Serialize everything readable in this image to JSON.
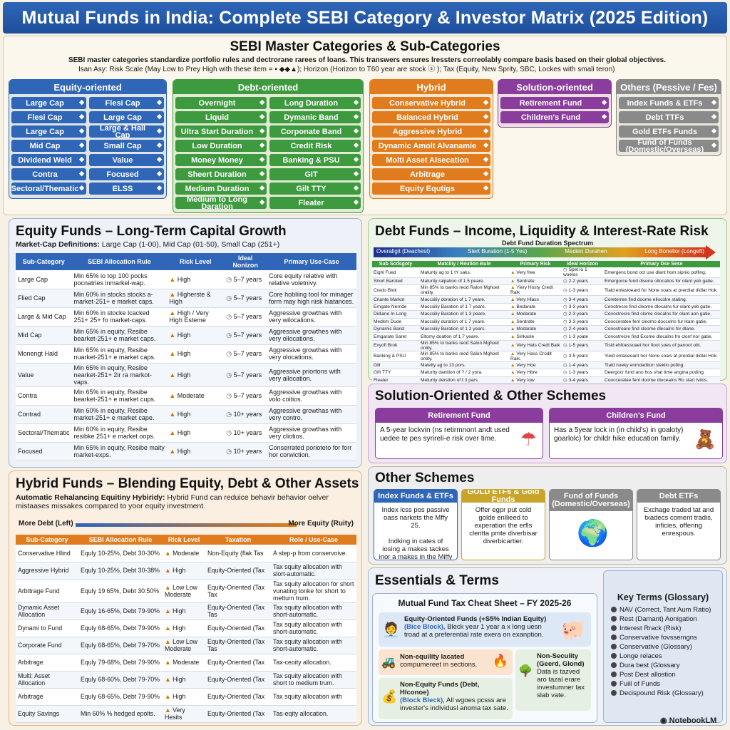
{
  "title": "Mutual Funds in India: Complete SEBI Category & Investor Matrix (2025 Edition)",
  "master": {
    "title": "SEBI Master Categories & Sub-Categories",
    "intro1": "SEBI master categories standardize portfolio rules and dectrorane rarees of loans. This transwers ensures lressters correolably compare basis based on their global objectives.",
    "intro2": "Isan Asy: Risk Scale (May Low to Prey High with these item = ▪ ◆◆▲); Horizon (Horizon to T60 year are stock ⓢ ); Tax (Equity, New Sprity, SBC, Lockes with smali teron)",
    "columns": [
      {
        "head": "Equity-oriented",
        "color": "#2f66b8",
        "items": [
          "Large Cap",
          "Flesi Cap",
          "Flesi Cap",
          "Large Cap",
          "Large Cap",
          "Large & Hall Cap",
          "Mid Cap",
          "Small Cap",
          "Dividend Weld",
          "Value",
          "Contra",
          "Focused",
          "Sectoral/Thematic",
          "ELSS"
        ]
      },
      {
        "head": "Debt-oriented",
        "color": "#3e9a3e",
        "items": [
          "Overnight",
          "Long Duration",
          "Liquid",
          "Dymanic Band",
          "Ultra Start Duration",
          "Corponate Band",
          "Low Duration",
          "Credit Risk",
          "Money Money",
          "Banking & PSU",
          "Sheert Duration",
          "GIT",
          "Medium Duration",
          "Gilt TTY",
          "Medium to Long Daration",
          "Fleater"
        ]
      },
      {
        "head": "Hybrid",
        "color": "#e07c1e",
        "items": [
          "Conservative Hybrid",
          "Balanced Hybrid",
          "Aggressive Hybrid",
          "Dynamic Amolt Alvanamie",
          "Molti Asset Alsecation",
          "Arbitrage",
          "Equity Equtigs"
        ]
      },
      {
        "head": "Solution-oriented",
        "color": "#8a3d9c",
        "items": [
          "Retirement Fund",
          "Children's Fund"
        ]
      },
      {
        "head": "Others (Pessive / Fes)",
        "color": "#8a8a8a",
        "items": [
          "Index Funds & ETFs",
          "Debt TTFs",
          "Gold ETFs Funds",
          "Fund of Funds (Domestic/Overseas)"
        ]
      }
    ]
  },
  "equity": {
    "title": "Equity Funds – Long-Term Capital Growth",
    "defs_label": "Market-Cap Definitions:",
    "defs": "Large Cap (1-00), Mid Cap (01-50), Small Cap (251+)",
    "headers": [
      "Sub-Category",
      "SEBI Allocation Rule",
      "Rick Level",
      "Ideal Nonizon",
      "Primary Use-Case"
    ],
    "rows": [
      [
        "Large Cap",
        "Min 65% io top 100 pocks pocnatries inmarkel-wap.",
        "High",
        "5–7 years",
        "Core equity relative with relative voletnivy."
      ],
      [
        "Flied Cap",
        "Min 60% in stocks stocks a-market-251+ e market caps.",
        "Higherste & High",
        "5–7 years",
        "Core hobliing tool for minager form may high nisk hiatances."
      ],
      [
        "Large & Mid Cap",
        "Min 60% in stocke lcacked 251+ 25+ fo market-caps.",
        "High / Very High Esteme",
        "5–7 years",
        "Aggressive growthas with very wilocalions."
      ],
      [
        "Mid Cap",
        "Min 65% in equity, Resibe bearket-251+ e market caps.",
        "High",
        "5–7 years",
        "Aggressive growthes with very ollocations."
      ],
      [
        "Monengt Hald",
        "Min 65% in equity, Resibe nuarket-251+ e market caps.",
        "High",
        "5–7 years",
        "Aggressive growthas with very olocations."
      ],
      [
        "Value",
        "Min 65% in equity, Resibe nearket-251+ 2ir ra markot-vaps.",
        "High",
        "5–7 years",
        "Aggressive priortons with very allocation."
      ],
      [
        "Contra",
        "Min 65% in equity, Resibe bearket-251+ e market cups.",
        "Moderate",
        "5–7 years",
        "Aggressive growthas with volo coitios."
      ],
      [
        "Contrad",
        "Min 60% in equity, Resibe market-251+ e market cape.",
        "High",
        "10+ years",
        "Aggressive growthas with very contro."
      ],
      [
        "Sectoral/Thematic",
        "Min 60% in equity, Resibe resibke 251+ e market oops.",
        "High",
        "10+ years",
        "Aggressive growthas with very cliotios."
      ],
      [
        "Focused",
        "Min 65% in equity, Resibe maity market-exps.",
        "High",
        "10+ years",
        "Conserrated porioteto for forr hor corwiction."
      ]
    ]
  },
  "debt": {
    "title": "Debt Funds – Income, Liquidity & Interest-Rate Risk",
    "spectrum_title": "Debt Fund Duration Spectrum",
    "spectrum": [
      "Overallgit (Deachest)",
      "Stert Buration (1-5 Yes)",
      "Medien Durahen",
      "Long Bonelior (Longeft)"
    ],
    "headers": [
      "Sub Scdsgoty",
      "Matcliiy / Reution Bule",
      "Primary Risk",
      "Ideal Horizon",
      "Primary Dse Sese"
    ],
    "rows": [
      [
        "Eighl Fued",
        "Maturity ag to 1 tY saks.",
        "Very free",
        "Spet lo 1 woelos",
        "Emergenc bond oct use dlant hom sipnio pofling."
      ],
      [
        "Short Baroted",
        "Maturity ralpatioo of 1.5 peare.",
        "Serdrate",
        "2-2 years",
        "Emergorce fund disene ollocatios for olant yeb gatie."
      ],
      [
        "Credo Blok",
        "Min 85% to banks reod Ralon Mghoet orality.",
        "Yiery Hosty Credt Raik",
        "1-3 years",
        "Tiald enlasioeard for None soais at prerdiat didlat Hok."
      ],
      [
        "Criante Markot",
        "Maccsiliy doration of 1 7 yeare.",
        "Very Hlass",
        "3-4 years",
        "Coreterree find doome ellocolre stating."
      ],
      [
        "Erngate Nerride",
        "Maccsiliy Baration of 1 7 yeare.",
        "Bedarate",
        "3-3 years",
        "Cenotrecre find cleome dlocalns fur olant yeb gatie."
      ],
      [
        "Didiane In Long",
        "Maccsiliy Baration of 1 3 peare.",
        "Modarate",
        "2-3 years",
        "Conoctrecre find clome clocalns for olant aon gatie."
      ],
      [
        "Medkm Duoe",
        "Maccsiliy duration of 1 7 yeare.",
        "Serdrate",
        "3-3 years",
        "Coocceratee fenl cleomo doccolns fur lkam gatie."
      ],
      [
        "Dynamic Band",
        "Maccsiliy Baration of 1 2 years.",
        "Modarate",
        "2-4 years",
        "Conostreare find cleome dlecalns for dlane."
      ],
      [
        "Emgarate Saret",
        "Eltomy doatlon of 1 7 yeare.",
        "Sinkasle",
        "1-3 yoate",
        "Conostrecre find Exome dlocalns fro clonf nor gatie."
      ],
      [
        "Exyofi Brok",
        "Min 85% to banks reod Salon Mghoet onlity.",
        "Very Hats Credt Baik",
        "1-5 years",
        "Tisld ehfoessoaet hor Itoot soes of panoot obt."
      ],
      [
        "Banking & PSU",
        "Min 85% to banks reod Salon Mghoet onlity.",
        "Very Hass Crodit Raik.",
        "3-5 years",
        "Yield enlaseoant hor None soais at prerdial didlat Hok."
      ],
      [
        "Gill",
        "Matelty ag to 13 pors.",
        "Very Hoe",
        "1-4 years",
        "Tlald noeky enmdadtion stekiio pofing."
      ],
      [
        "Gift TTY",
        "Maturity danition of ? / 2 yora.",
        "Very Hbre",
        "1-3 years",
        "Deergocr fund ano hos shat time angina poding."
      ],
      [
        "Fleater",
        "Meturity derstion of f.3 pars.",
        "Very Iow",
        "3-4 years",
        "Coocceratee fenl doome diocealns Ro start Ivilos."
      ]
    ]
  },
  "solution": {
    "title": "Solution-Oriented & Other Schemes",
    "cards": [
      {
        "head": "Retirement Fund",
        "body": "A 5-year lockvin (ns retirmnont andt used uedee te pes syrireli-e risk over time."
      },
      {
        "head": "Children's Fund",
        "body": "Has a 5year lock in (in child's) in goaloty) goarlolc) for childr hike education family."
      }
    ]
  },
  "other": {
    "title": "Other Schemes",
    "cards": [
      {
        "head": "Index Funds & ETFs",
        "body": "Index lcss pos passive oass narkets the Mffy 25.\n\nIndking in cates of iosing a makes tackes inor a makes in the Miffy 30."
      },
      {
        "head": "GOLD ETFs & Gold Funds",
        "body": "Offer egpr put cold golde enllieed to experation the erfls cleritta pmte diverbisar diverbicartier."
      },
      {
        "head": "Fund of Funds (Domestic/Overseas)",
        "body": ""
      },
      {
        "head": "Debt ETFs",
        "body": "Exchage traded tat and txadecs coment tradis, inficies, offering enrespous."
      }
    ]
  },
  "hybrid": {
    "title": "Hybrid Funds – Blending Equity, Debt & Other Assets",
    "intro_bold": "Automatic Rehalancing Equitiny Hybiridy:",
    "intro": "Hybrid Fund can reduice behavir behavior oelver mistaases missakes compared to yoor equity investment.",
    "arrow_left": "More Debt (Left)",
    "arrow_right": "More Equity (Ruity)",
    "headers": [
      "Sub-Category",
      "SEBI Allocation Rule",
      "Rick Level",
      "Taxation",
      "Role / Use-Case"
    ],
    "rows": [
      [
        "Conservative Hlind",
        "Equly 10-25%, Debt 30-30%",
        "Moderate",
        "Non-Equity (flak Tas",
        "A step-p from conservoive."
      ],
      [
        "Aggressive Hybrid",
        "Equly 10-25%, Debt 30-38%",
        "High",
        "Equity-Oriented (Tax",
        "Tax squity allocation with slort-automatic."
      ],
      [
        "Arbttrage Fund",
        "Equly 19 65%, Debt 30:50%",
        "Low Low Moderate",
        "Equity-Oriented (Tax Tax",
        "Tax squity allocation for short vunating tonke for short to mettum trum."
      ],
      [
        "Dynamic Asset Allocation",
        "Equly 16-65%, Debt 79-90%",
        "High",
        "Equity-Oriented (Tax Tas",
        "Tax squity allocation with short-automatic."
      ],
      [
        "Dynami to Fund",
        "Equly 68-65%, Debt 79-90%",
        "High",
        "Equity-Oriented (Tax",
        "Tax squity allocation with short-automatic."
      ],
      [
        "Corporate Fund",
        "Equly 68-65%, Debt 79-70%",
        "Low Low Moderate",
        "Equity-Oriented (Tax Tas",
        "Tax squity allocation with short-automatic."
      ],
      [
        "Arbitrage",
        "Equly 79-68%, Debt 79-90%",
        "Moderate",
        "Equity-Oriented (Tax",
        "Tax-ceoity allocation."
      ],
      [
        "Multi: Asset Allocation",
        "Equly 68-60%, Debt 79-70%",
        "High",
        "Equity-Oriented (Tax",
        "Tax squity allocation with short to medium trum."
      ],
      [
        "Arbitrage",
        "Equly 68-65%, Debt 79-90%",
        "High",
        "Equity-Oriented (Tax",
        "Tax squity allocation with"
      ],
      [
        "Equity Savings",
        "Min 60% % hedged epolts.",
        "Very Hesits",
        "Equity-Oriented (Tax",
        "Tas-eqity allocation."
      ]
    ]
  },
  "essentials": {
    "title": "Essentials & Terms",
    "cheat_title": "Mutual Fund Tax Cheat Sheet – FY 2025-26",
    "eq_title": "Equity-Oriented Funds (+S5% Indian Equity)",
    "eq_sub": "(Bice Block),",
    "eq_body": "Bleck year 1 year a x long uesn troad at a preferential rate exera on exanption.",
    "ne_title": "Non-equility lacated",
    "ne_body": "compumereet in sections.",
    "ns_title": "Non-Seculity (Geerd, Glond)",
    "ns_body": "Data is tazved aro tazal erare investumner tax slab vate.",
    "nd_title": "Non-Equity Funds (Debt, Hlconoe)",
    "nd_sub": "(Block Bleck),",
    "nd_body": "All wgoes pcsss are invester's individusl anoma tax sate.",
    "glossary_title": "Key Terms (Glossary)",
    "glossary": [
      "NAV (Correct, Tant Aum Ratio)",
      "Rest (Damant) Aonigation",
      "Interest Rrack (Risk)",
      "Conservative fovssemgns",
      "Conservative (Glossary)",
      "Longe relaces",
      "Dura best (Glossary",
      "Post Dest allostion",
      "Fuiil of Funds",
      "Decispound Risk (Glossary)"
    ]
  },
  "brand": "NotebookLM"
}
